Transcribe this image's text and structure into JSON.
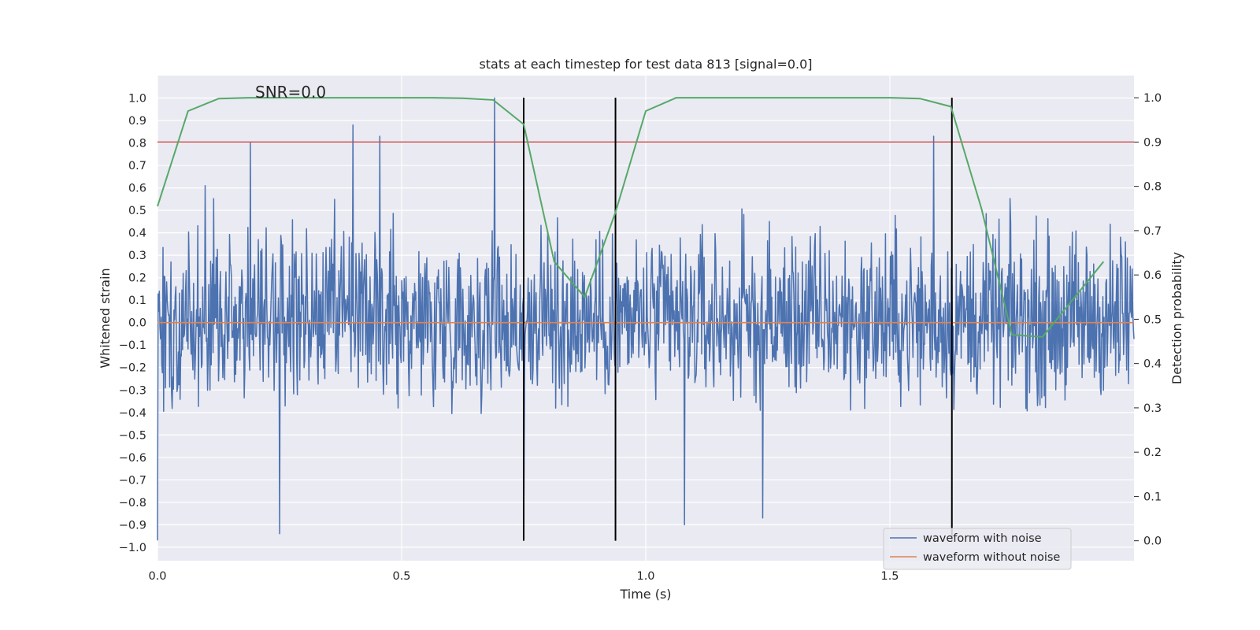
{
  "chart_data": {
    "type": "line",
    "title": "stats at each timestep for test data 813 [signal=0.0]",
    "annotation": "SNR=0.0",
    "xlabel": "Time (s)",
    "ylabel_left": "Whitened strain",
    "ylabel_right": "Detection probability",
    "xlim": [
      0.0,
      2.0
    ],
    "ylim_left": [
      -1.06,
      1.1
    ],
    "ylim_right": [
      -0.045,
      1.05
    ],
    "grid": true,
    "x_ticks": [
      "0.0",
      "0.5",
      "1.0",
      "1.5"
    ],
    "x_tick_values": [
      0.0,
      0.5,
      1.0,
      1.5
    ],
    "y_ticks_left": [
      "1.0",
      "0.9",
      "0.8",
      "0.7",
      "0.6",
      "0.5",
      "0.4",
      "0.3",
      "0.2",
      "0.1",
      "0.0",
      "-0.1",
      "-0.2",
      "-0.3",
      "-0.4",
      "-0.5",
      "-0.6",
      "-0.7",
      "-0.8",
      "-0.9",
      "-1.0"
    ],
    "y_ticks_right": [
      "1.0",
      "0.9",
      "0.8",
      "0.7",
      "0.6",
      "0.5",
      "0.4",
      "0.3",
      "0.2",
      "0.1",
      "0.0"
    ],
    "legend": {
      "placement": "lower right",
      "entries": [
        {
          "label": "waveform with noise",
          "color": "#4c72b0"
        },
        {
          "label": "waveform without noise",
          "color": "#dd8452"
        }
      ]
    },
    "noise_series": {
      "name": "waveform with noise",
      "color": "#4c72b0",
      "x_range": [
        0.0,
        2.0
      ],
      "samples": 1600,
      "typical_amplitude": [
        -0.5,
        0.6
      ],
      "extrema": [
        {
          "x": 0.0,
          "y": -0.97
        },
        {
          "x": 0.097,
          "y": 0.61
        },
        {
          "x": 0.19,
          "y": 0.8
        },
        {
          "x": 0.25,
          "y": -0.94
        },
        {
          "x": 0.4,
          "y": 0.88
        },
        {
          "x": 0.455,
          "y": 0.83
        },
        {
          "x": 0.69,
          "y": 1.0
        },
        {
          "x": 0.75,
          "y": -0.77
        },
        {
          "x": 1.08,
          "y": -0.9
        },
        {
          "x": 1.24,
          "y": -0.87
        },
        {
          "x": 1.59,
          "y": 0.83
        }
      ]
    },
    "clean_series": {
      "name": "waveform without noise",
      "color": "#dd8452",
      "x": [
        0.0,
        2.0
      ],
      "y": [
        0.0,
        0.0
      ]
    },
    "probability_series": {
      "axis": "right",
      "color": "#55a868",
      "x": [
        0.0,
        0.0625,
        0.125,
        0.1875,
        0.25,
        0.3125,
        0.375,
        0.4375,
        0.5,
        0.5625,
        0.625,
        0.6875,
        0.75,
        0.8125,
        0.875,
        0.9375,
        1.0,
        1.0625,
        1.125,
        1.1875,
        1.25,
        1.3125,
        1.375,
        1.4375,
        1.5,
        1.5625,
        1.625,
        1.6875,
        1.75,
        1.8125,
        1.875,
        1.9375
      ],
      "y": [
        0.755,
        0.97,
        0.998,
        1.0,
        1.0,
        1.0,
        1.0,
        1.0,
        1.0,
        1.0,
        0.999,
        0.995,
        0.94,
        0.63,
        0.55,
        0.74,
        0.97,
        1.0,
        1.0,
        1.0,
        1.0,
        1.0,
        1.0,
        1.0,
        1.0,
        0.998,
        0.98,
        0.75,
        0.465,
        0.46,
        0.545,
        0.63
      ]
    },
    "threshold": {
      "axis": "right",
      "y": 0.9,
      "color": "#c44e52"
    },
    "vertical_markers": {
      "x": [
        0.75,
        0.938,
        1.627
      ],
      "y_range_right": [
        0.0,
        1.0
      ],
      "color": "#000000"
    }
  }
}
